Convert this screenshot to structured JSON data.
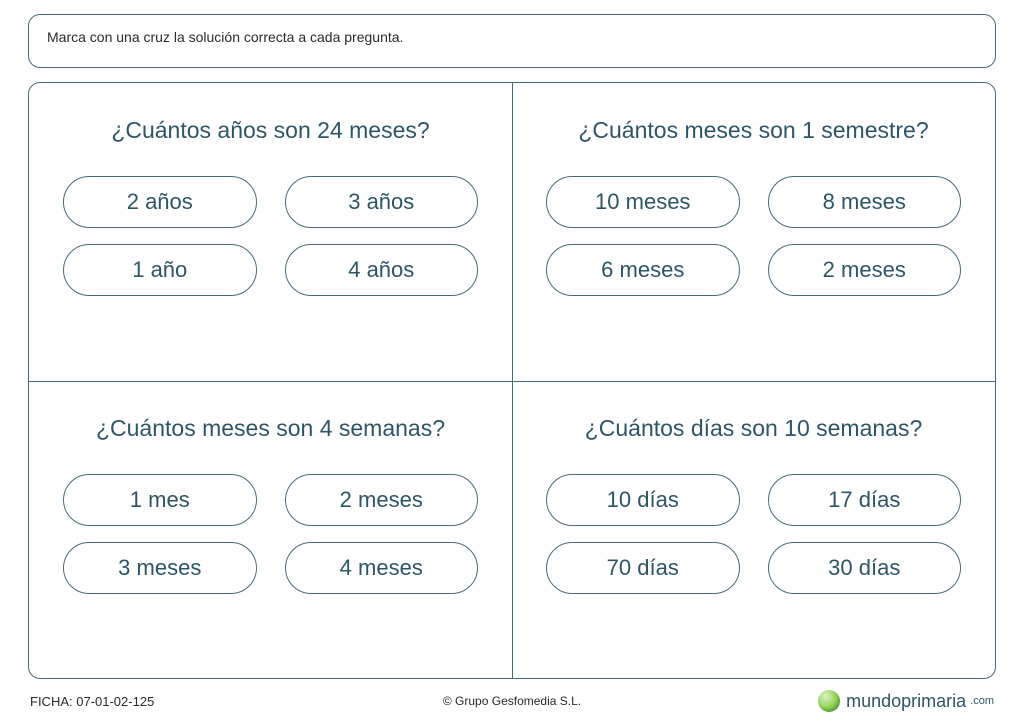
{
  "colors": {
    "border": "#476b79",
    "text_primary": "#2e5566",
    "text_body": "#2a2a2a",
    "background": "#ffffff"
  },
  "instruction": "Marca con una cruz la solución correcta a cada pregunta.",
  "questions": [
    {
      "prompt": "¿Cuántos años son 24 meses?",
      "options": [
        "2 años",
        "3 años",
        "1 año",
        "4 años"
      ]
    },
    {
      "prompt": "¿Cuántos meses son 1 semestre?",
      "options": [
        "10 meses",
        "8 meses",
        "6 meses",
        "2 meses"
      ]
    },
    {
      "prompt": "¿Cuántos meses son 4 semanas?",
      "options": [
        "1 mes",
        "2 meses",
        "3 meses",
        "4 meses"
      ]
    },
    {
      "prompt": "¿Cuántos días son 10 semanas?",
      "options": [
        "10 días",
        "17 días",
        "70 días",
        "30 días"
      ]
    }
  ],
  "footer": {
    "ficha_label": "FICHA: 07-01-02-125",
    "copyright": "© Grupo Gesfomedia S.L.",
    "brand": "mundoprimaria",
    "brand_tld": ".com"
  }
}
